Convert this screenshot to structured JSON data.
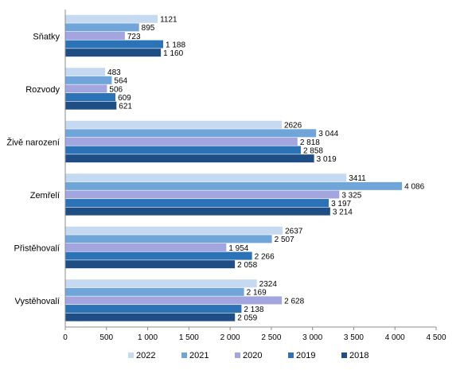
{
  "chart_data": {
    "type": "bar",
    "orientation": "horizontal",
    "categories": [
      "Sňatky",
      "Rozvody",
      "Živě narození",
      "Zemřelí",
      "Přistěhovalí",
      "Vystěhovalí"
    ],
    "series": [
      {
        "name": "2022",
        "color": "#c5d9f1",
        "values": [
          1121,
          483,
          2626,
          3411,
          2637,
          2324
        ],
        "labels": [
          "1121",
          "483",
          "2626",
          "3411",
          "2637",
          "2324"
        ]
      },
      {
        "name": "2021",
        "color": "#6fa5d8",
        "values": [
          895,
          564,
          3044,
          4086,
          2507,
          2169
        ],
        "labels": [
          "895",
          "564",
          "3 044",
          "4 086",
          "2 507",
          "2 169"
        ]
      },
      {
        "name": "2020",
        "color": "#a3a6de",
        "values": [
          723,
          506,
          2818,
          3325,
          1954,
          2628
        ],
        "labels": [
          "723",
          "506",
          "2 818",
          "3 325",
          "1 954",
          "2 628"
        ]
      },
      {
        "name": "2019",
        "color": "#2b73b6",
        "values": [
          1188,
          609,
          2858,
          3197,
          2266,
          2138
        ],
        "labels": [
          "1 188",
          "609",
          "2 858",
          "3 197",
          "2 266",
          "2 138"
        ]
      },
      {
        "name": "2018",
        "color": "#1f4e85",
        "values": [
          1160,
          621,
          3019,
          3214,
          2058,
          2059
        ],
        "labels": [
          "1 160",
          "621",
          "3 019",
          "3 214",
          "2 058",
          "2 059"
        ]
      }
    ],
    "xlim": [
      0,
      4500
    ],
    "x_ticks": [
      "0",
      "500",
      "1 000",
      "1 500",
      "2 000",
      "2 500",
      "3 000",
      "3 500",
      "4 000",
      "4 500"
    ],
    "legend_position": "bottom",
    "grid": false,
    "title": "",
    "xlabel": "",
    "ylabel": ""
  }
}
